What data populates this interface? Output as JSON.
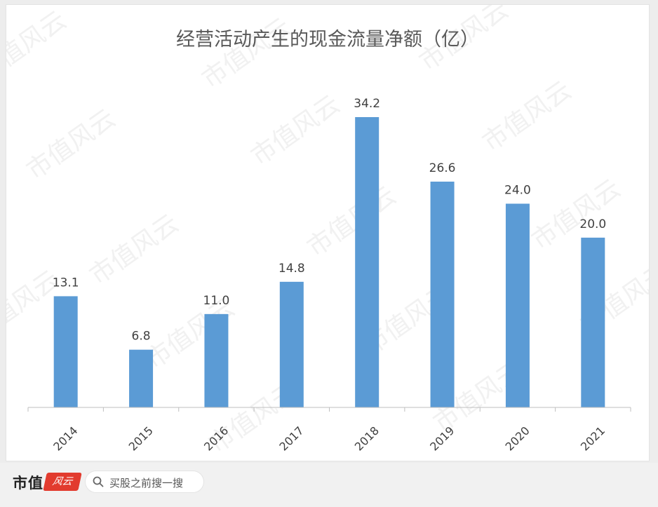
{
  "chart_data": {
    "type": "bar",
    "title": "经营活动产生的现金流量净额（亿）",
    "categories": [
      "2014",
      "2015",
      "2016",
      "2017",
      "2018",
      "2019",
      "2020",
      "2021"
    ],
    "values": [
      13.1,
      6.8,
      11.0,
      14.8,
      34.2,
      26.6,
      24.0,
      20.0
    ],
    "value_labels": [
      "13.1",
      "6.8",
      "11.0",
      "14.8",
      "34.2",
      "26.6",
      "24.0",
      "20.0"
    ],
    "xlabel": "",
    "ylabel": "",
    "ylim": [
      0,
      36
    ],
    "grid": false,
    "legend": "none",
    "bar_color": "#5b9bd5"
  },
  "watermark": {
    "text": "市值风云"
  },
  "footer": {
    "brand_name": "市值",
    "brand_logo_text": "风云",
    "search_placeholder": "买股之前搜一搜",
    "search_icon": "search-icon"
  }
}
